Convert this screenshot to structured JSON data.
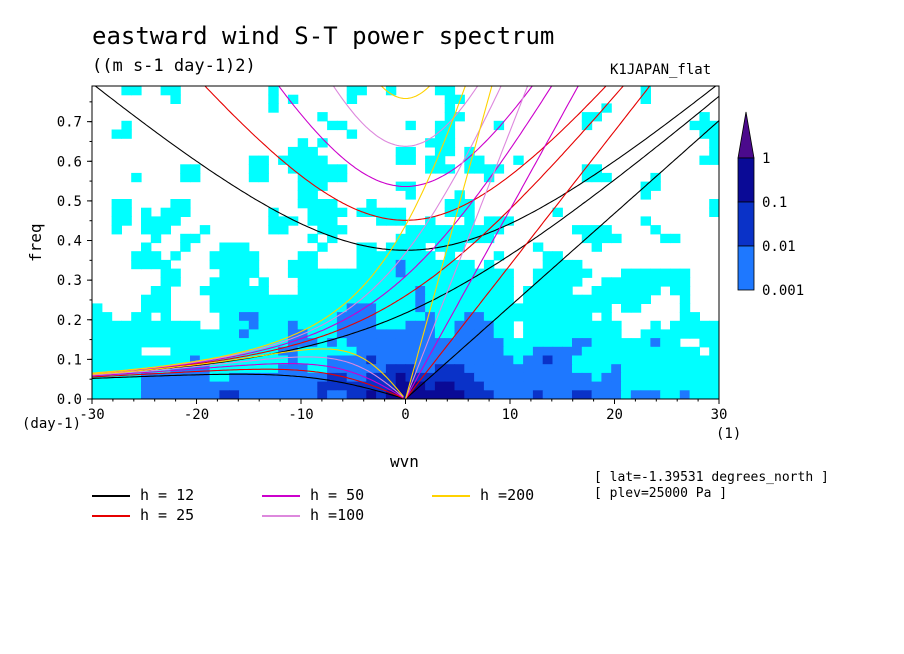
{
  "chart_data": {
    "type": "heatmap",
    "title": "eastward wind S-T power spectrum",
    "units": "((m s-1 day-1)2)",
    "model_label": "K1JAPAN_flat",
    "xlabel": "wvn",
    "ylabel": "freq",
    "x_unit": "(1)",
    "y_unit": "(day-1)",
    "xlim": [
      -30,
      30
    ],
    "ylim": [
      0,
      0.79
    ],
    "xticks": [
      "-30",
      "-20",
      "-10",
      "0",
      "10",
      "20",
      "30"
    ],
    "yticks": [
      "0.0",
      "0.1",
      "0.2",
      "0.3",
      "0.4",
      "0.5",
      "0.6",
      "0.7"
    ],
    "colorbar": {
      "levels": [
        "0.001",
        "0.01",
        "0.1",
        "1"
      ],
      "colors": [
        "#00ffff",
        "#1e78ff",
        "#0a32c8",
        "#0a0a96",
        "#4b0a8c"
      ]
    },
    "dispersion_curves": [
      {
        "label": "h = 12",
        "color": "#000000"
      },
      {
        "label": "h = 25",
        "color": "#e60000"
      },
      {
        "label": "h = 50",
        "color": "#cc00cc"
      },
      {
        "label": "h =100",
        "color": "#dd88dd"
      },
      {
        "label": "h =200",
        "color": "#ffd200"
      }
    ],
    "annotations": [
      "[ lat=-1.39531 degrees_north ]",
      "[ plev=25000 Pa ]"
    ]
  }
}
